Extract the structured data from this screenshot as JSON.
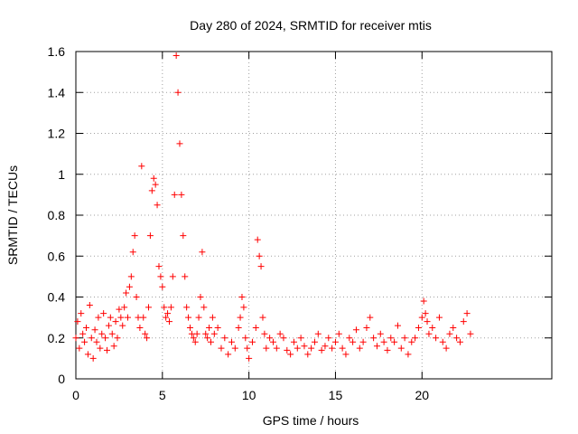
{
  "chart_data": {
    "type": "scatter",
    "title": "Day 280 of 2024, SRMTID for receiver mtis",
    "xlabel": "GPS time / hours",
    "ylabel": "SRMTID / TECUs",
    "xlim": [
      0,
      27.5
    ],
    "ylim": [
      0,
      1.6
    ],
    "xticks": [
      0,
      5,
      10,
      15,
      20
    ],
    "xtick_labels": [
      "0",
      "5",
      "10",
      "15",
      "20"
    ],
    "yticks": [
      0,
      0.2,
      0.4,
      0.6,
      0.8,
      1.0,
      1.2,
      1.4,
      1.6
    ],
    "ytick_labels": [
      "0",
      "0.2",
      "0.4",
      "0.6",
      "0.8",
      "1",
      "1.2",
      "1.4",
      "1.6"
    ],
    "grid": true,
    "marker": "+",
    "color": "#ff0000",
    "series": [
      {
        "name": "SRMTID",
        "x": [
          0.0,
          0.1,
          0.2,
          0.3,
          0.4,
          0.5,
          0.6,
          0.7,
          0.8,
          0.9,
          1.0,
          1.1,
          1.2,
          1.3,
          1.4,
          1.5,
          1.6,
          1.7,
          1.8,
          1.9,
          2.0,
          2.1,
          2.2,
          2.3,
          2.4,
          2.5,
          2.6,
          2.7,
          2.8,
          2.9,
          3.0,
          3.1,
          3.2,
          3.3,
          3.4,
          3.5,
          3.6,
          3.7,
          3.8,
          3.9,
          4.0,
          4.1,
          4.2,
          4.3,
          4.4,
          4.5,
          4.6,
          4.7,
          4.8,
          4.9,
          5.0,
          5.1,
          5.2,
          5.3,
          5.4,
          5.5,
          5.6,
          5.7,
          5.8,
          5.9,
          6.0,
          6.1,
          6.2,
          6.3,
          6.4,
          6.5,
          6.6,
          6.7,
          6.8,
          6.9,
          7.0,
          7.1,
          7.2,
          7.3,
          7.4,
          7.5,
          7.6,
          7.7,
          7.8,
          7.9,
          8.0,
          8.2,
          8.4,
          8.6,
          8.8,
          9.0,
          9.2,
          9.4,
          9.5,
          9.6,
          9.7,
          9.8,
          9.9,
          10.0,
          10.2,
          10.4,
          10.5,
          10.6,
          10.7,
          10.8,
          10.9,
          11.0,
          11.2,
          11.4,
          11.6,
          11.8,
          12.0,
          12.2,
          12.4,
          12.6,
          12.8,
          13.0,
          13.2,
          13.4,
          13.6,
          13.8,
          14.0,
          14.2,
          14.4,
          14.6,
          14.8,
          15.0,
          15.2,
          15.4,
          15.6,
          15.8,
          16.0,
          16.2,
          16.4,
          16.6,
          16.8,
          17.0,
          17.2,
          17.4,
          17.6,
          17.8,
          18.0,
          18.2,
          18.4,
          18.6,
          18.8,
          19.0,
          19.2,
          19.4,
          19.6,
          19.8,
          20.0,
          20.1,
          20.2,
          20.3,
          20.4,
          20.6,
          20.8,
          21.0,
          21.2,
          21.4,
          21.6,
          21.8,
          22.0,
          22.2,
          22.4,
          22.6,
          22.8
        ],
        "y": [
          0.2,
          0.28,
          0.15,
          0.32,
          0.22,
          0.18,
          0.25,
          0.12,
          0.36,
          0.2,
          0.1,
          0.24,
          0.18,
          0.3,
          0.15,
          0.22,
          0.32,
          0.2,
          0.14,
          0.26,
          0.3,
          0.22,
          0.16,
          0.28,
          0.2,
          0.34,
          0.3,
          0.26,
          0.35,
          0.42,
          0.3,
          0.45,
          0.5,
          0.62,
          0.7,
          0.4,
          0.3,
          0.25,
          1.04,
          0.3,
          0.22,
          0.2,
          0.35,
          0.7,
          0.92,
          0.98,
          0.95,
          0.85,
          0.55,
          0.5,
          0.45,
          0.35,
          0.3,
          0.32,
          0.28,
          0.35,
          0.5,
          0.9,
          1.58,
          1.4,
          1.15,
          0.9,
          0.7,
          0.5,
          0.35,
          0.3,
          0.25,
          0.22,
          0.2,
          0.18,
          0.22,
          0.3,
          0.4,
          0.62,
          0.35,
          0.22,
          0.2,
          0.25,
          0.18,
          0.3,
          0.22,
          0.25,
          0.15,
          0.2,
          0.12,
          0.18,
          0.15,
          0.25,
          0.3,
          0.4,
          0.35,
          0.2,
          0.15,
          0.1,
          0.18,
          0.25,
          0.68,
          0.6,
          0.55,
          0.3,
          0.22,
          0.15,
          0.2,
          0.18,
          0.15,
          0.22,
          0.2,
          0.14,
          0.12,
          0.18,
          0.15,
          0.2,
          0.16,
          0.12,
          0.15,
          0.18,
          0.22,
          0.14,
          0.16,
          0.2,
          0.15,
          0.18,
          0.22,
          0.15,
          0.12,
          0.2,
          0.18,
          0.24,
          0.15,
          0.18,
          0.25,
          0.3,
          0.2,
          0.16,
          0.22,
          0.18,
          0.14,
          0.2,
          0.18,
          0.26,
          0.15,
          0.2,
          0.12,
          0.18,
          0.2,
          0.25,
          0.3,
          0.38,
          0.32,
          0.28,
          0.22,
          0.25,
          0.2,
          0.3,
          0.18,
          0.15,
          0.22,
          0.25,
          0.2,
          0.18,
          0.28,
          0.32,
          0.22
        ]
      }
    ]
  }
}
